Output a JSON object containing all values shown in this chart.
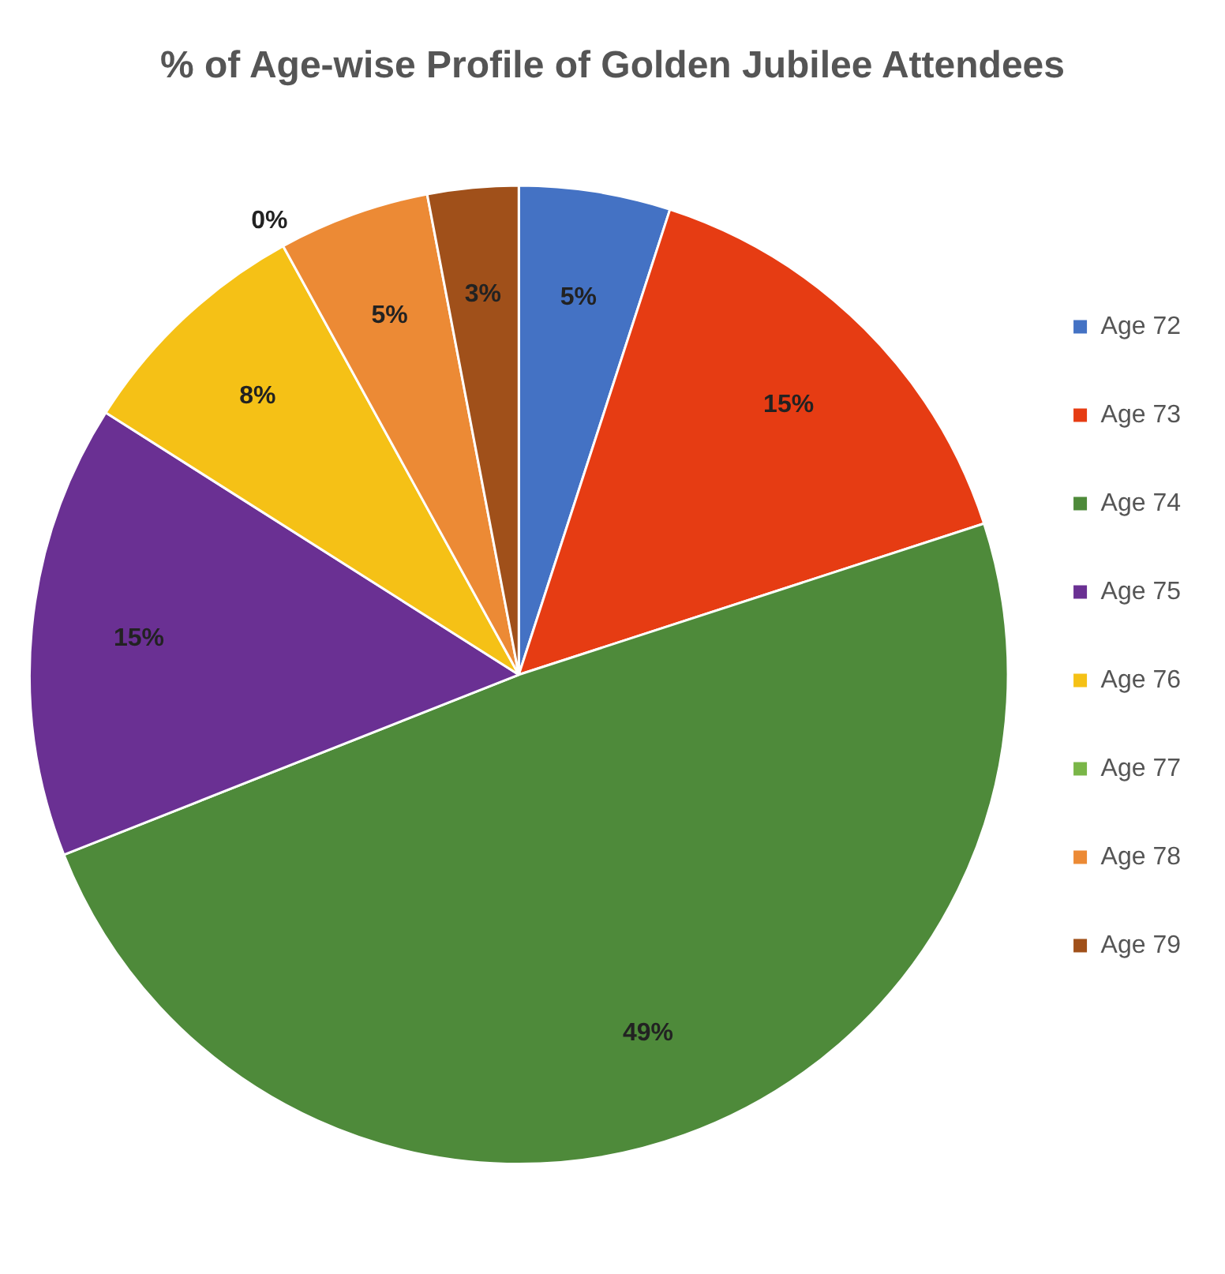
{
  "chart_data": {
    "type": "pie",
    "title": "% of Age-wise Profile of Golden Jubilee Attendees",
    "categories": [
      "Age 72",
      "Age 73",
      "Age 74",
      "Age 75",
      "Age 76",
      "Age 77",
      "Age 78",
      "Age 79"
    ],
    "values": [
      5,
      15,
      49,
      15,
      8,
      0,
      5,
      3
    ],
    "value_labels": [
      "5%",
      "15%",
      "49%",
      "15%",
      "8%",
      "0%",
      "5%",
      "3%"
    ],
    "colors": [
      "#4472c4",
      "#e63c13",
      "#4e8a3a",
      "#6a3093",
      "#f5c116",
      "#7ab648",
      "#ec8a35",
      "#a0501a"
    ],
    "legend": "right"
  }
}
